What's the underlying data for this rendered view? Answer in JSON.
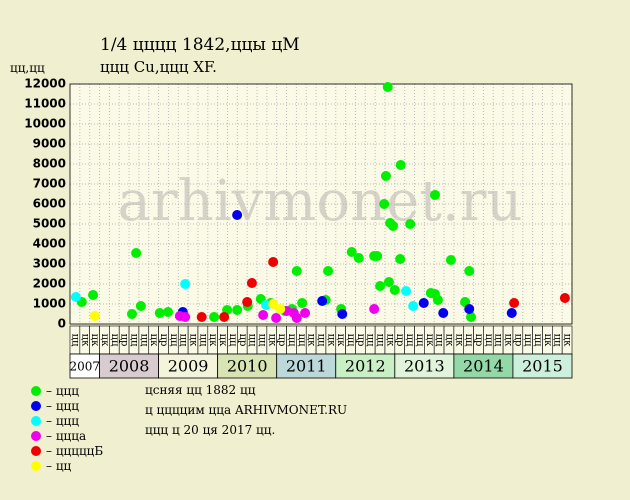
{
  "title": "1/4 цццц 1842,ццы цМ",
  "subtitle": "ццц Cu,ццц XF.",
  "watermark": "arhivmonet.ru",
  "notes": [
    "цcняя цц 1882 цц",
    "ц ццццим ццa ARHIVMONET.RU",
    "ццц ц 20 ця 2017 цц."
  ],
  "chart_data": {
    "type": "scatter",
    "ylabel": "цц,цц",
    "ylim": [
      0,
      12000
    ],
    "yticks": [
      0,
      1000,
      2000,
      3000,
      4000,
      5000,
      6000,
      7000,
      8000,
      9000,
      10000,
      11000,
      12000
    ],
    "xlim": [
      2007.5,
      2016
    ],
    "grid": true,
    "periods": [
      {
        "label": "2007",
        "start": 2007.5,
        "end": 2008,
        "color": "#ffffff"
      },
      {
        "label": "2008",
        "start": 2008,
        "end": 2009,
        "color": "#d8ccd0"
      },
      {
        "label": "2009",
        "start": 2009,
        "end": 2010,
        "color": "#f4f4dc"
      },
      {
        "label": "2010",
        "start": 2010,
        "end": 2011,
        "color": "#d8e4b4"
      },
      {
        "label": "2011",
        "start": 2011,
        "end": 2012,
        "color": "#bcd8d8"
      },
      {
        "label": "2012",
        "start": 2012,
        "end": 2013,
        "color": "#c8f0c4"
      },
      {
        "label": "2013",
        "start": 2013,
        "end": 2014,
        "color": "#e0f4dc"
      },
      {
        "label": "2014",
        "start": 2014,
        "end": 2015,
        "color": "#94d8a8"
      },
      {
        "label": "2015",
        "start": 2015,
        "end": 2016,
        "color": "#ccf0dc"
      }
    ],
    "columns": [
      "цц",
      "цк",
      "цк",
      "цк",
      "цц",
      "цр",
      "цц",
      "цц",
      "цк",
      "цр",
      "цц",
      "цц",
      "цк",
      "цц",
      "цк",
      "цк",
      "цц",
      "цр",
      "цц",
      "цц",
      "цк",
      "цр",
      "цц",
      "цц",
      "цк",
      "цц",
      "цк",
      "цк",
      "цц",
      "цр",
      "цц",
      "цц",
      "цк",
      "цр",
      "цц",
      "цц",
      "цк",
      "цц",
      "цк",
      "цк",
      "цц",
      "цр",
      "цц",
      "цц",
      "цк",
      "цр",
      "цц",
      "цц",
      "цк",
      "цц",
      "цк"
    ],
    "series": [
      {
        "name": "– ццц",
        "color": "#00ee00",
        "x": [
          2007.7,
          2007.89,
          2008.55,
          2008.62,
          2008.7,
          2009.02,
          2009.16,
          2009.94,
          2010.16,
          2010.33,
          2010.51,
          2010.73,
          2010.9,
          2011.14,
          2011.26,
          2011.34,
          2011.43,
          2011.83,
          2011.87,
          2012.09,
          2012.27,
          2012.39,
          2012.65,
          2012.7,
          2012.75,
          2012.82,
          2012.85,
          2012.88,
          2012.9,
          2012.92,
          2012.97,
          2013.0,
          2013.09,
          2013.1,
          2013.26,
          2013.61,
          2013.68,
          2013.68,
          2013.73,
          2013.95,
          2014.19,
          2014.26,
          2014.29
        ],
        "values": [
          1100,
          1450,
          500,
          3550,
          900,
          550,
          600,
          350,
          700,
          700,
          900,
          1250,
          1050,
          650,
          750,
          2650,
          1050,
          1200,
          2650,
          750,
          3600,
          3300,
          3400,
          3400,
          1900,
          6000,
          7400,
          11850,
          2100,
          5050,
          4900,
          1700,
          3250,
          7950,
          5000,
          1550,
          1500,
          6450,
          1200,
          3200,
          1100,
          2650,
          350
        ]
      },
      {
        "name": "– ццц",
        "color": "#0000ee",
        "x": [
          2009.41,
          2010.33,
          2011.77,
          2012.11,
          2013.49,
          2013.82,
          2014.26,
          2014.98
        ],
        "values": [
          600,
          5450,
          1150,
          500,
          1050,
          550,
          750,
          550
        ]
      },
      {
        "name": "– ццц",
        "color": "#00ffff",
        "x": [
          2007.6,
          2009.45,
          2010.82,
          2013.19,
          2013.31
        ],
        "values": [
          1350,
          2000,
          950,
          1650,
          900
        ]
      },
      {
        "name": "– цццa",
        "color": "#ee00ee",
        "x": [
          2009.36,
          2009.45,
          2010.77,
          2010.99,
          2011.17,
          2011.29,
          2011.34,
          2011.48,
          2012.65
        ],
        "values": [
          400,
          350,
          450,
          300,
          650,
          550,
          300,
          550,
          750
        ]
      },
      {
        "name": "– цццццБ",
        "color": "#ee0000",
        "x": [
          2009.73,
          2010.11,
          2010.5,
          2010.58,
          2010.94,
          2015.02,
          2015.88
        ],
        "values": [
          350,
          350,
          1100,
          2050,
          3100,
          1050,
          1300
        ]
      },
      {
        "name": "– цц",
        "color": "#ffff00",
        "x": [
          2007.92,
          2010.94,
          2011.06
        ],
        "values": [
          400,
          1000,
          750
        ]
      }
    ]
  }
}
